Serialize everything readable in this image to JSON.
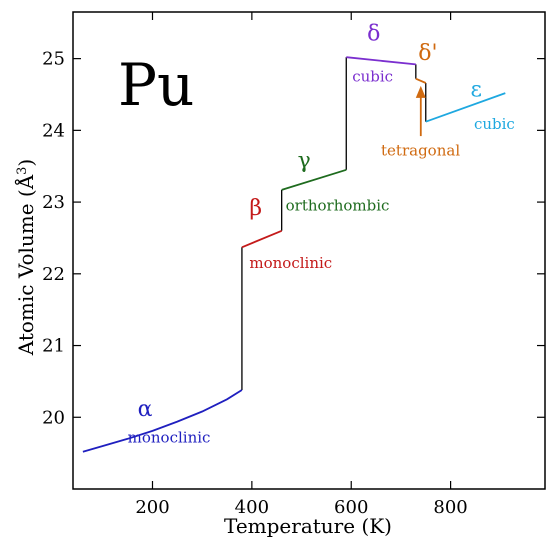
{
  "chart_data": {
    "type": "line",
    "title": "Pu",
    "xlabel": "Temperature (K)",
    "ylabel_main": "Atomic Volume (Å",
    "ylabel_sup": "3",
    "ylabel_close": ")",
    "xlim": [
      40,
      990
    ],
    "ylim": [
      19.0,
      25.65
    ],
    "xticks": [
      200,
      400,
      600,
      800
    ],
    "yticks": [
      20,
      21,
      22,
      23,
      24,
      25
    ],
    "xtick_labels": [
      "200",
      "400",
      "600",
      "800"
    ],
    "ytick_labels": [
      "20",
      "21",
      "22",
      "23",
      "24",
      "25"
    ],
    "grid": false,
    "colors": {
      "alpha": "#1f1fbf",
      "beta": "#c41a1a",
      "gamma": "#1e6b1e",
      "delta": "#7b2fcf",
      "deltaprime": "#d06a10",
      "epsilon": "#1ea8e0",
      "transition": "#000000"
    },
    "series": [
      {
        "key": "alpha",
        "color_key": "alpha",
        "x": [
          60,
          100,
          150,
          200,
          250,
          300,
          350,
          380
        ],
        "y": [
          19.52,
          19.6,
          19.7,
          19.81,
          19.94,
          20.08,
          20.25,
          20.38
        ]
      },
      {
        "key": "beta",
        "color_key": "beta",
        "x": [
          380,
          460
        ],
        "y": [
          22.37,
          22.6
        ]
      },
      {
        "key": "gamma",
        "color_key": "gamma",
        "x": [
          460,
          590
        ],
        "y": [
          23.17,
          23.45
        ]
      },
      {
        "key": "delta",
        "color_key": "delta",
        "x": [
          590,
          730
        ],
        "y": [
          25.02,
          24.92
        ]
      },
      {
        "key": "deltaprime",
        "color_key": "deltaprime",
        "x": [
          730,
          750
        ],
        "y": [
          24.72,
          24.66
        ]
      },
      {
        "key": "epsilon",
        "color_key": "epsilon",
        "x": [
          750,
          910
        ],
        "y": [
          24.12,
          24.52
        ]
      }
    ],
    "transitions": [
      {
        "x": 380,
        "y1": 20.38,
        "y2": 22.37
      },
      {
        "x": 460,
        "y1": 22.6,
        "y2": 23.17
      },
      {
        "x": 590,
        "y1": 23.45,
        "y2": 25.02
      },
      {
        "x": 730,
        "y1": 24.92,
        "y2": 24.72
      },
      {
        "x": 750,
        "y1": 24.66,
        "y2": 24.12
      }
    ],
    "annotations": [
      {
        "key": "alpha-symbol",
        "text": "α",
        "x": 170,
        "y": 20.02,
        "color_key": "alpha",
        "kind": "symbol"
      },
      {
        "key": "alpha-structure",
        "text": "monoclinic",
        "x": 150,
        "y": 19.65,
        "color_key": "alpha",
        "kind": "structure"
      },
      {
        "key": "beta-symbol",
        "text": "β",
        "x": 395,
        "y": 22.82,
        "color_key": "beta",
        "kind": "symbol"
      },
      {
        "key": "beta-structure",
        "text": "monoclinic",
        "x": 395,
        "y": 22.08,
        "color_key": "beta",
        "kind": "structure"
      },
      {
        "key": "gamma-symbol",
        "text": "γ",
        "x": 492,
        "y": 23.48,
        "color_key": "gamma",
        "kind": "symbol"
      },
      {
        "key": "gamma-structure",
        "text": "orthorhombic",
        "x": 468,
        "y": 22.88,
        "color_key": "gamma",
        "kind": "structure"
      },
      {
        "key": "delta-symbol",
        "text": "δ",
        "x": 632,
        "y": 25.25,
        "color_key": "delta",
        "kind": "symbol"
      },
      {
        "key": "delta-structure",
        "text": "cubic",
        "x": 602,
        "y": 24.68,
        "color_key": "delta",
        "kind": "structure"
      },
      {
        "key": "deltaprime-symbol",
        "text": "δ'",
        "x": 735,
        "y": 24.98,
        "color_key": "deltaprime",
        "kind": "symbol"
      },
      {
        "key": "epsilon-symbol",
        "text": "ε",
        "x": 840,
        "y": 24.47,
        "color_key": "epsilon",
        "kind": "symbol"
      },
      {
        "key": "epsilon-structure",
        "text": "cubic",
        "x": 847,
        "y": 24.02,
        "color_key": "epsilon",
        "kind": "structure"
      },
      {
        "key": "tetragonal-label",
        "text": "tetragonal",
        "x": 660,
        "y": 23.65,
        "color_key": "deltaprime",
        "kind": "structure"
      }
    ],
    "arrow": {
      "x": 740,
      "y_from": 23.92,
      "y_to": 24.62,
      "color_key": "deltaprime"
    }
  }
}
